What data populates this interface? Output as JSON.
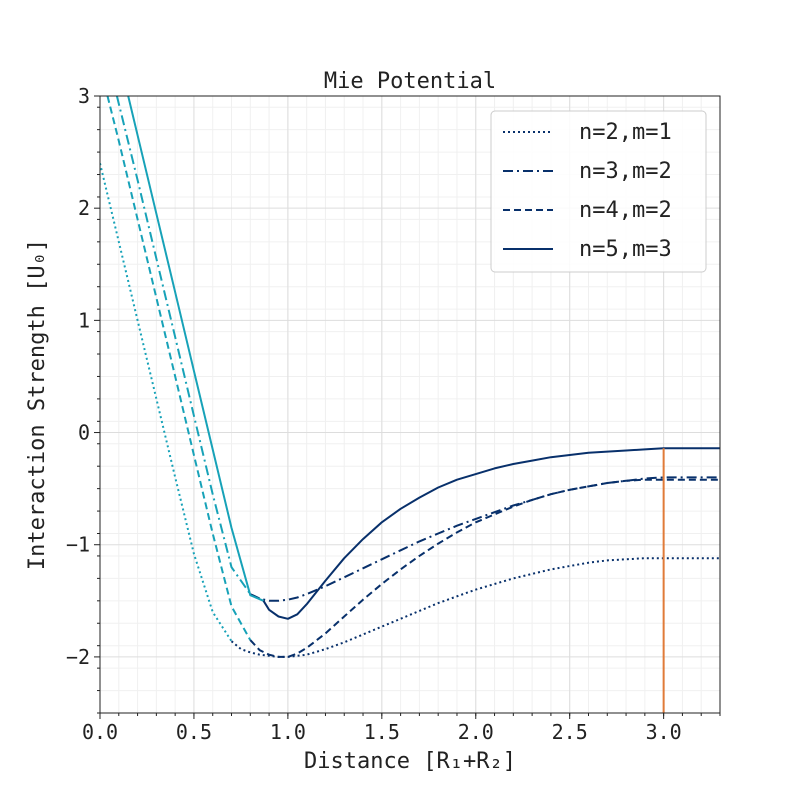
{
  "chart_data": {
    "type": "line",
    "title": "Mie Potential",
    "xlabel": "Distance [R₁+R₂]",
    "ylabel": "Interaction Strength [U₀]",
    "xlim": [
      0.0,
      3.3
    ],
    "ylim": [
      -2.5,
      3.0
    ],
    "x_ticks": [
      "0.0",
      "0.5",
      "1.0",
      "1.5",
      "2.0",
      "2.5",
      "3.0"
    ],
    "x_tick_values": [
      0.0,
      0.5,
      1.0,
      1.5,
      2.0,
      2.5,
      3.0
    ],
    "y_ticks": [
      "−2",
      "−1",
      "0",
      "1",
      "2",
      "3"
    ],
    "y_tick_values": [
      -2,
      -1,
      0,
      1,
      2,
      3
    ],
    "grid": true,
    "minor_grid": true,
    "legend_position": "top-right",
    "cutoff_x": 3.0,
    "cutoff_color": "#e07b39",
    "series": [
      {
        "name": "n=2,m=1",
        "style": "dotted",
        "color": "#08306b",
        "inner_color": "#17a2b8",
        "x": [
          0.0,
          0.1,
          0.2,
          0.3,
          0.4,
          0.5,
          0.6,
          0.7,
          0.75,
          0.8,
          0.85,
          0.9,
          0.95,
          1.0,
          1.1,
          1.2,
          1.3,
          1.4,
          1.5,
          1.6,
          1.7,
          1.8,
          1.9,
          2.0,
          2.1,
          2.2,
          2.3,
          2.4,
          2.5,
          2.6,
          2.7,
          2.8,
          2.9,
          3.0,
          3.3
        ],
        "y": [
          2.4,
          1.7,
          1.0,
          0.3,
          -0.4,
          -1.08,
          -1.6,
          -1.86,
          -1.93,
          -1.96,
          -1.98,
          -1.99,
          -2.0,
          -2.0,
          -1.98,
          -1.93,
          -1.87,
          -1.8,
          -1.73,
          -1.66,
          -1.59,
          -1.52,
          -1.46,
          -1.4,
          -1.35,
          -1.3,
          -1.26,
          -1.22,
          -1.19,
          -1.16,
          -1.14,
          -1.13,
          -1.12,
          -1.12,
          -1.12
        ],
        "inner_cutoff_x": 0.72
      },
      {
        "name": "n=3,m=2",
        "style": "dashdot",
        "color": "#08306b",
        "inner_color": "#17a2b8",
        "x": [
          0.09,
          0.2,
          0.3,
          0.4,
          0.5,
          0.6,
          0.7,
          0.8,
          0.85,
          0.9,
          0.95,
          1.0,
          1.05,
          1.1,
          1.2,
          1.3,
          1.4,
          1.5,
          1.6,
          1.7,
          1.8,
          1.9,
          2.0,
          2.1,
          2.2,
          2.3,
          2.4,
          2.5,
          2.6,
          2.7,
          2.8,
          2.9,
          3.0,
          3.3
        ],
        "y": [
          3.0,
          2.25,
          1.55,
          0.85,
          0.15,
          -0.55,
          -1.2,
          -1.44,
          -1.48,
          -1.5,
          -1.5,
          -1.49,
          -1.47,
          -1.44,
          -1.37,
          -1.29,
          -1.21,
          -1.13,
          -1.05,
          -0.97,
          -0.9,
          -0.83,
          -0.77,
          -0.71,
          -0.65,
          -0.6,
          -0.55,
          -0.51,
          -0.48,
          -0.45,
          -0.43,
          -0.41,
          -0.4,
          -0.4
        ],
        "inner_cutoff_x": 0.85
      },
      {
        "name": "n=4,m=2",
        "style": "dashed",
        "color": "#08306b",
        "inner_color": "#17a2b8",
        "x": [
          0.04,
          0.1,
          0.2,
          0.3,
          0.4,
          0.5,
          0.6,
          0.7,
          0.8,
          0.85,
          0.9,
          0.95,
          1.0,
          1.05,
          1.1,
          1.2,
          1.3,
          1.4,
          1.5,
          1.6,
          1.7,
          1.8,
          1.9,
          2.0,
          2.1,
          2.2,
          2.3,
          2.4,
          2.5,
          2.6,
          2.7,
          2.8,
          2.9,
          3.0,
          3.3
        ],
        "y": [
          3.0,
          2.6,
          1.9,
          1.2,
          0.5,
          -0.2,
          -0.9,
          -1.55,
          -1.85,
          -1.94,
          -1.98,
          -2.0,
          -2.0,
          -1.97,
          -1.92,
          -1.79,
          -1.64,
          -1.49,
          -1.35,
          -1.22,
          -1.1,
          -0.99,
          -0.89,
          -0.8,
          -0.73,
          -0.66,
          -0.6,
          -0.55,
          -0.51,
          -0.48,
          -0.45,
          -0.43,
          -0.42,
          -0.42,
          -0.42
        ],
        "inner_cutoff_x": 0.8
      },
      {
        "name": "n=5,m=3",
        "style": "solid",
        "color": "#08306b",
        "inner_color": "#17a2b8",
        "x": [
          0.15,
          0.2,
          0.3,
          0.4,
          0.5,
          0.6,
          0.7,
          0.8,
          0.87,
          0.9,
          0.95,
          1.0,
          1.05,
          1.1,
          1.2,
          1.3,
          1.4,
          1.5,
          1.6,
          1.7,
          1.8,
          1.9,
          2.0,
          2.1,
          2.2,
          2.3,
          2.4,
          2.5,
          2.6,
          2.7,
          2.8,
          2.9,
          3.0,
          3.3
        ],
        "y": [
          3.0,
          2.65,
          1.95,
          1.25,
          0.55,
          -0.15,
          -0.85,
          -1.45,
          -1.5,
          -1.58,
          -1.64,
          -1.66,
          -1.62,
          -1.53,
          -1.32,
          -1.12,
          -0.95,
          -0.8,
          -0.68,
          -0.58,
          -0.49,
          -0.42,
          -0.37,
          -0.32,
          -0.28,
          -0.25,
          -0.22,
          -0.2,
          -0.18,
          -0.17,
          -0.16,
          -0.15,
          -0.14,
          -0.14
        ],
        "inner_cutoff_x": 0.88
      }
    ]
  }
}
